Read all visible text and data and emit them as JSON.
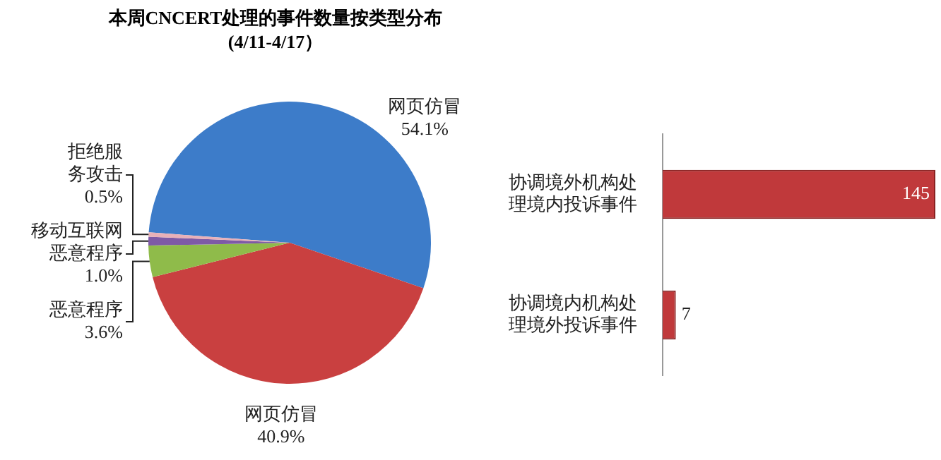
{
  "chart_data": [
    {
      "type": "pie",
      "title": "本周CNCERT处理的事件数量按类型分布",
      "subtitle": "(4/11-4/17）",
      "categories": [
        "网页仿冒",
        "网页仿冒",
        "恶意程序",
        "移动互联网恶意程序",
        "拒绝服务攻击"
      ],
      "values": [
        54.1,
        40.9,
        3.6,
        1.0,
        0.5
      ],
      "value_labels": [
        "54.1%",
        "40.9%",
        "3.6%",
        "1.0%",
        "0.5%"
      ],
      "colors": [
        "#3d7cc9",
        "#c94040",
        "#8fbb4a",
        "#7e5aa6",
        "#e8b0b8"
      ]
    },
    {
      "type": "bar",
      "orientation": "horizontal",
      "categories": [
        "协调境外机构处理境内投诉事件",
        "协调境内机构处理境外投诉事件"
      ],
      "values": [
        145,
        7
      ],
      "color": "#c0393b",
      "data_labels": true
    }
  ]
}
